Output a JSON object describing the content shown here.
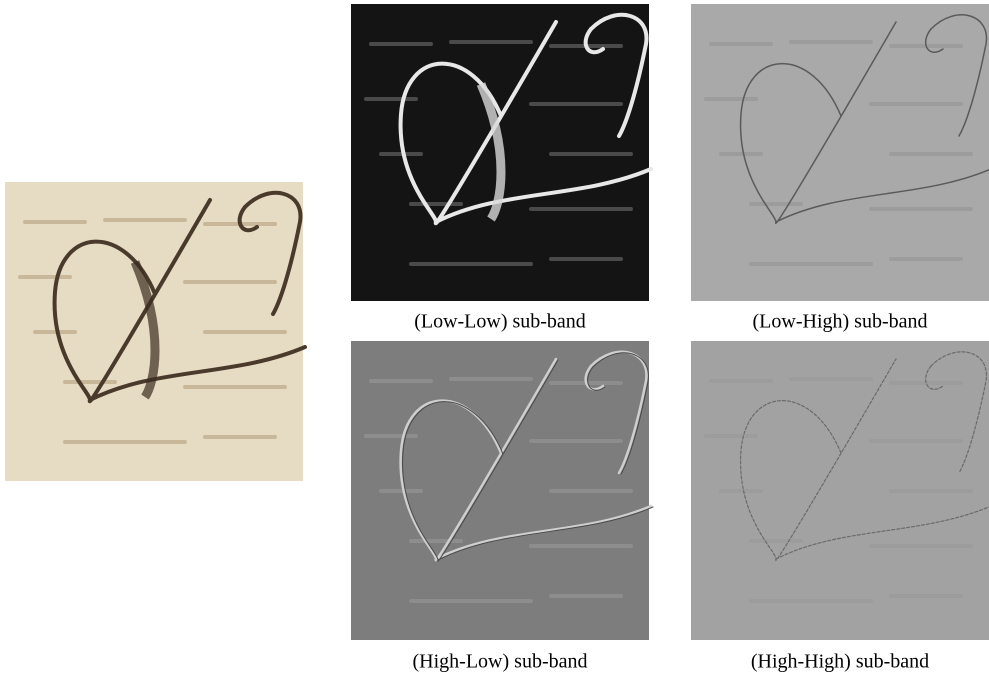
{
  "panels": [
    {
      "caption": "(Low-Low) sub-band"
    },
    {
      "caption": "(Low-High) sub-band"
    },
    {
      "caption": "(High-Low) sub-band"
    },
    {
      "caption": "(High-High) sub-band"
    }
  ]
}
